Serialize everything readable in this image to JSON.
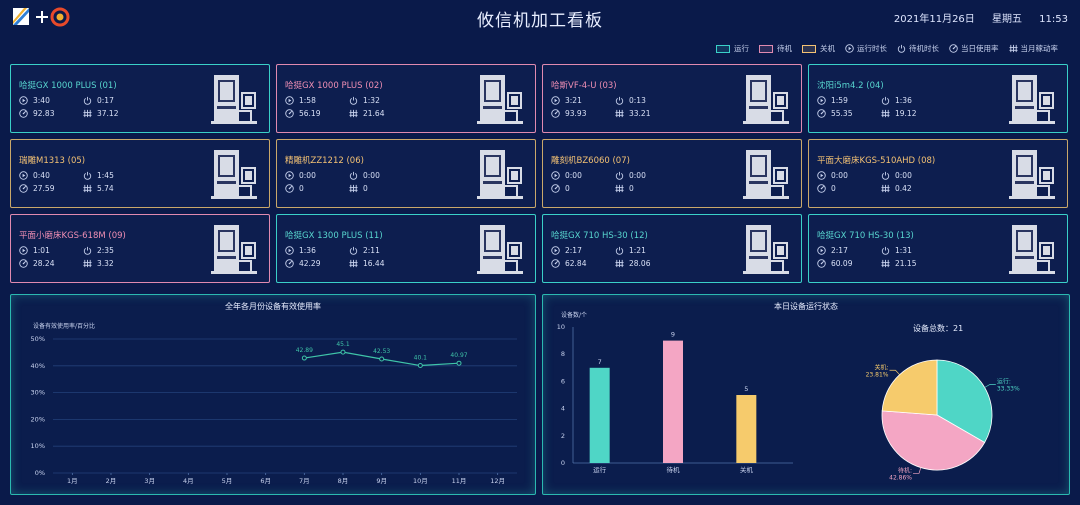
{
  "header": {
    "title": "攸信机加工看板",
    "date": "2021年11月26日",
    "weekday": "星期五",
    "time": "11:53"
  },
  "legend": [
    {
      "label": "运行",
      "color": "#3ad0c8",
      "type": "swatch"
    },
    {
      "label": "待机",
      "color": "#e08ab0",
      "type": "swatch"
    },
    {
      "label": "关机",
      "color": "#f4c274",
      "type": "swatch"
    },
    {
      "label": "运行时长",
      "icon": "play-circle-icon"
    },
    {
      "label": "待机时长",
      "icon": "power-icon"
    },
    {
      "label": "当日使用率",
      "icon": "rate-icon"
    },
    {
      "label": "当月稼动率",
      "icon": "bars-icon"
    }
  ],
  "machines": [
    {
      "name": "哈挺GX 1000 PLUS  (01)",
      "status": "run",
      "run_time": "3:40",
      "idle_time": "0:17",
      "daily_rate": "92.83",
      "monthly_rate": "37.12"
    },
    {
      "name": "哈挺GX 1000 PLUS  (02)",
      "status": "idle",
      "run_time": "1:58",
      "idle_time": "1:32",
      "daily_rate": "56.19",
      "monthly_rate": "21.64"
    },
    {
      "name": "哈斯VF-4-U  (03)",
      "status": "idle",
      "run_time": "3:21",
      "idle_time": "0:13",
      "daily_rate": "93.93",
      "monthly_rate": "33.21"
    },
    {
      "name": "沈阳i5m4.2  (04)",
      "status": "run",
      "run_time": "1:59",
      "idle_time": "1:36",
      "daily_rate": "55.35",
      "monthly_rate": "19.12"
    },
    {
      "name": "瑞雕M1313  (05)",
      "status": "off",
      "run_time": "0:40",
      "idle_time": "1:45",
      "daily_rate": "27.59",
      "monthly_rate": "5.74"
    },
    {
      "name": "精雕机ZZ1212  (06)",
      "status": "off",
      "run_time": "0:00",
      "idle_time": "0:00",
      "daily_rate": "0",
      "monthly_rate": "0"
    },
    {
      "name": "雕刻机BZ6060  (07)",
      "status": "off",
      "run_time": "0:00",
      "idle_time": "0:00",
      "daily_rate": "0",
      "monthly_rate": "0"
    },
    {
      "name": "平面大磨床KGS-510AHD  (08)",
      "status": "off",
      "run_time": "0:00",
      "idle_time": "0:00",
      "daily_rate": "0",
      "monthly_rate": "0.42"
    },
    {
      "name": "平面小磨床KGS-618M  (09)",
      "status": "idle",
      "run_time": "1:01",
      "idle_time": "2:35",
      "daily_rate": "28.24",
      "monthly_rate": "3.32"
    },
    {
      "name": "哈挺GX 1300 PLUS  (11)",
      "status": "run",
      "run_time": "1:36",
      "idle_time": "2:11",
      "daily_rate": "42.29",
      "monthly_rate": "16.44"
    },
    {
      "name": "哈挺GX 710 HS-30  (12)",
      "status": "run",
      "run_time": "2:17",
      "idle_time": "1:21",
      "daily_rate": "62.84",
      "monthly_rate": "28.06"
    },
    {
      "name": "哈挺GX 710 HS-30  (13)",
      "status": "run",
      "run_time": "2:17",
      "idle_time": "1:31",
      "daily_rate": "60.09",
      "monthly_rate": "21.15"
    }
  ],
  "colors": {
    "run": "#3ad0c8",
    "idle": "#e08ab0",
    "off": "#c9a86a",
    "bar_run": "#4fd6c6",
    "bar_idle": "#f4a6c4",
    "bar_off": "#f6cb6c",
    "line": "#3fc4a8"
  },
  "chart_data": [
    {
      "type": "line",
      "title": "全年各月份设备有效使用率",
      "ylabel": "设备有效使用率/百分比",
      "categories": [
        "1月",
        "2月",
        "3月",
        "4月",
        "5月",
        "6月",
        "7月",
        "8月",
        "9月",
        "10月",
        "11月",
        "12月"
      ],
      "values": [
        null,
        null,
        null,
        null,
        null,
        null,
        42.89,
        45.1,
        42.53,
        40.1,
        40.97,
        null
      ],
      "y_ticks": [
        "0%",
        "10%",
        "20%",
        "30%",
        "40%",
        "50%"
      ],
      "ylim": [
        0,
        50
      ]
    },
    {
      "type": "bar",
      "title": "本日设备运行状态",
      "ylabel": "设备数/个",
      "categories": [
        "运行",
        "待机",
        "关机"
      ],
      "values": [
        7,
        9,
        5
      ],
      "ylim": [
        0,
        10
      ],
      "y_ticks": [
        0,
        2,
        4,
        6,
        8,
        10
      ]
    },
    {
      "type": "pie",
      "total_label": "设备总数：21",
      "slices": [
        {
          "label": "运行",
          "value": 33.33,
          "text": "33.33%"
        },
        {
          "label": "待机",
          "value": 42.86,
          "text": "42.86%"
        },
        {
          "label": "关机",
          "value": 23.81,
          "text": "23.81%"
        }
      ]
    }
  ]
}
